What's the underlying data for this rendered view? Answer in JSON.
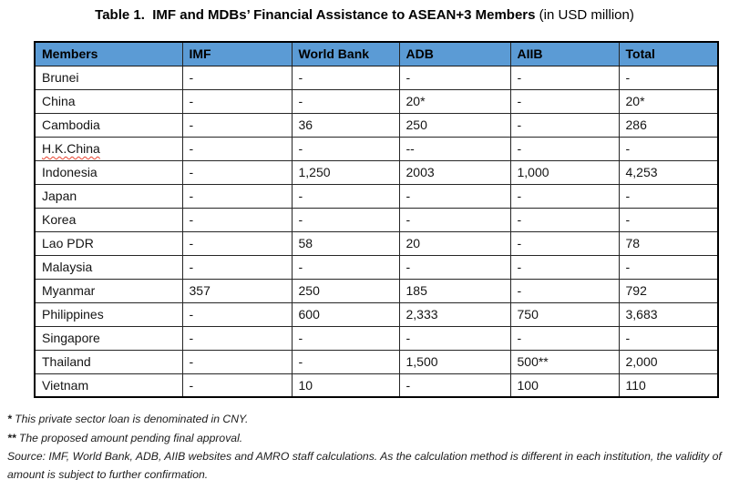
{
  "title": {
    "bold": "Table 1.  IMF and MDBs’ Financial Assistance to ASEAN+3 Members",
    "regular": " (in USD million)"
  },
  "table": {
    "header_bg": "#5B9BD5",
    "header": [
      "Members",
      "IMF",
      "World Bank",
      "ADB",
      "AIIB",
      "Total"
    ],
    "rows": [
      {
        "member": "Brunei",
        "spellcheck": false,
        "values": [
          "-",
          "-",
          "-",
          "-",
          "-"
        ]
      },
      {
        "member": "China",
        "spellcheck": false,
        "values": [
          "-",
          "-",
          "20*",
          "-",
          "20*"
        ]
      },
      {
        "member": "Cambodia",
        "spellcheck": false,
        "values": [
          "-",
          "36",
          "250",
          "-",
          "286"
        ]
      },
      {
        "member": "H.K.China",
        "spellcheck": true,
        "values": [
          "-",
          "-",
          "--",
          "-",
          "-"
        ]
      },
      {
        "member": "Indonesia",
        "spellcheck": false,
        "values": [
          "-",
          "1,250",
          "2003",
          "1,000",
          "4,253"
        ]
      },
      {
        "member": "Japan",
        "spellcheck": false,
        "values": [
          "-",
          "-",
          "-",
          "-",
          "-"
        ]
      },
      {
        "member": "Korea",
        "spellcheck": false,
        "values": [
          "-",
          "-",
          "-",
          "-",
          "-"
        ]
      },
      {
        "member": "Lao PDR",
        "spellcheck": false,
        "values": [
          "-",
          "58",
          "20",
          "-",
          "78"
        ]
      },
      {
        "member": "Malaysia",
        "spellcheck": false,
        "values": [
          "-",
          "-",
          "-",
          "-",
          "-"
        ]
      },
      {
        "member": "Myanmar",
        "spellcheck": false,
        "values": [
          "357",
          "250",
          "185",
          "-",
          "792"
        ]
      },
      {
        "member": "Philippines",
        "spellcheck": false,
        "values": [
          "-",
          "600",
          "2,333",
          "750",
          "3,683"
        ]
      },
      {
        "member": "Singapore",
        "spellcheck": false,
        "values": [
          "-",
          "-",
          "-",
          "-",
          "-"
        ]
      },
      {
        "member": "Thailand",
        "spellcheck": false,
        "values": [
          "-",
          "-",
          "1,500",
          "500**",
          "2,000"
        ]
      },
      {
        "member": "Vietnam",
        "spellcheck": false,
        "values": [
          "-",
          "10",
          "-",
          "100",
          "110"
        ]
      }
    ]
  },
  "footnotes": [
    {
      "marker": "*",
      "text": " This private sector loan is denominated in CNY."
    },
    {
      "marker": "**",
      "text": " The proposed amount pending final approval."
    },
    {
      "marker": "",
      "text": "Source: IMF, World Bank, ADB, AIIB websites and AMRO staff calculations. As the calculation method is different in each institution, the validity of amount is subject to further confirmation."
    }
  ]
}
